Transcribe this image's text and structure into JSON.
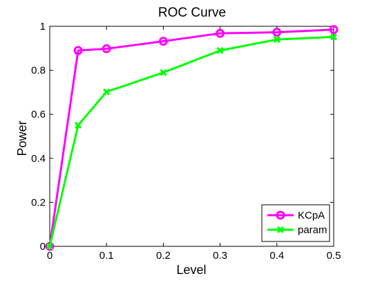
{
  "chart_data": {
    "type": "line",
    "title": "ROC Curve",
    "xlabel": "Level",
    "ylabel": "Power",
    "xlim": [
      0,
      0.5
    ],
    "ylim": [
      0,
      1
    ],
    "xticks": [
      0,
      0.1,
      0.2,
      0.3,
      0.4,
      0.5
    ],
    "yticks": [
      0,
      0.2,
      0.4,
      0.6,
      0.8,
      1
    ],
    "xtick_labels": [
      "0",
      "0.1",
      "0.2",
      "0.3",
      "0.4",
      "0.5"
    ],
    "ytick_labels": [
      "0",
      "0.2",
      "0.4",
      "0.6",
      "0.8",
      "1"
    ],
    "grid": false,
    "legend_position": "bottom-right",
    "series": [
      {
        "name": "KCpA",
        "color": "#ff00ff",
        "marker": "circle",
        "x": [
          0,
          0.05,
          0.1,
          0.2,
          0.3,
          0.4,
          0.5
        ],
        "y": [
          0.0,
          0.89,
          0.898,
          0.932,
          0.968,
          0.973,
          0.985
        ]
      },
      {
        "name": "param",
        "color": "#00ff00",
        "marker": "x",
        "x": [
          0,
          0.05,
          0.1,
          0.2,
          0.3,
          0.4,
          0.5
        ],
        "y": [
          0.0,
          0.55,
          0.702,
          0.79,
          0.89,
          0.94,
          0.952
        ]
      }
    ]
  }
}
